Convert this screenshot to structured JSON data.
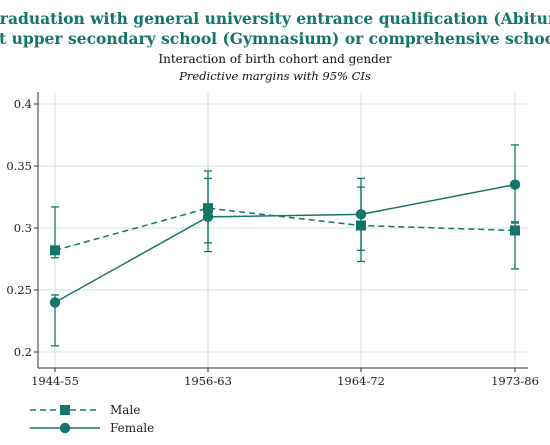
{
  "chart_data": {
    "type": "line",
    "title_lines": [
      "Graduation with general university entrance qualification (Abitur)",
      "at upper secondary school (Gymnasium) or comprehensive school"
    ],
    "subtitle": "Interaction of birth cohort and gender",
    "note": "Predictive margins with 95% CIs",
    "categories": [
      "1944-55",
      "1956-63",
      "1964-72",
      "1973-86"
    ],
    "yticks": [
      "0.2",
      "0.25",
      "0.3",
      "0.35",
      "0.4"
    ],
    "ylim": [
      0.2,
      0.4
    ],
    "grid": true,
    "legend_position": "bottom-left",
    "colors": {
      "series": "#14766a",
      "grid": "#cfe3ea",
      "axis": "#333333"
    },
    "series": [
      {
        "name": "Male",
        "marker": "square",
        "line": "dashed",
        "values": [
          0.282,
          0.316,
          0.302,
          0.298
        ],
        "ci_low": [
          0.276,
          0.288,
          0.273,
          0.267
        ],
        "ci_high": [
          0.317,
          0.346,
          0.34,
          0.304
        ]
      },
      {
        "name": "Female",
        "marker": "circle",
        "line": "solid",
        "values": [
          0.24,
          0.309,
          0.311,
          0.335
        ],
        "ci_low": [
          0.205,
          0.281,
          0.282,
          0.305
        ],
        "ci_high": [
          0.246,
          0.34,
          0.333,
          0.367
        ]
      }
    ]
  }
}
